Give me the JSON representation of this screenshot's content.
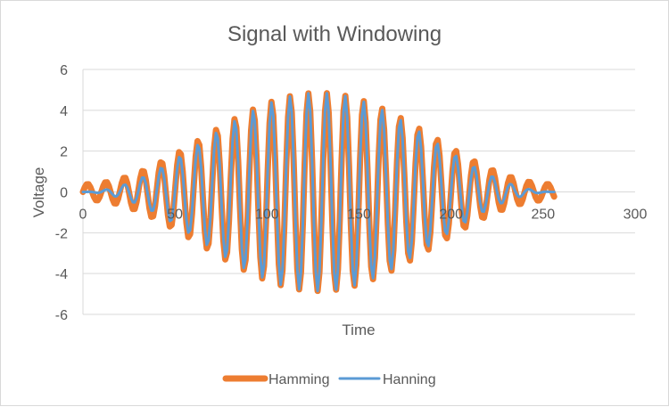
{
  "chart_data": {
    "type": "line",
    "title": "Signal with Windowing",
    "xlabel": "Time",
    "ylabel": "Voltage",
    "xlim": [
      0,
      300
    ],
    "ylim": [
      -6,
      6
    ],
    "x_ticks": [
      0,
      50,
      100,
      150,
      200,
      250,
      300
    ],
    "y_ticks": [
      6,
      4,
      2,
      0,
      -2,
      -4,
      -6
    ],
    "x_tick_labels": [
      "0",
      "50",
      "100",
      "150",
      "200",
      "250",
      "300"
    ],
    "y_tick_labels": [
      "6",
      "4",
      "2",
      "0",
      "-2",
      "-4",
      "-6"
    ],
    "grid": "horizontal",
    "legend_position": "bottom",
    "series": [
      {
        "name": "Hamming",
        "color": "#ED7D31",
        "window": "hamming",
        "samples": 256,
        "amplitude": 4.85,
        "period": 10,
        "x_start": 0,
        "x_end": 256
      },
      {
        "name": "Hanning",
        "color": "#5B9BD5",
        "window": "hanning",
        "samples": 256,
        "amplitude": 4.85,
        "period": 10,
        "x_start": 0,
        "x_end": 256
      }
    ]
  }
}
